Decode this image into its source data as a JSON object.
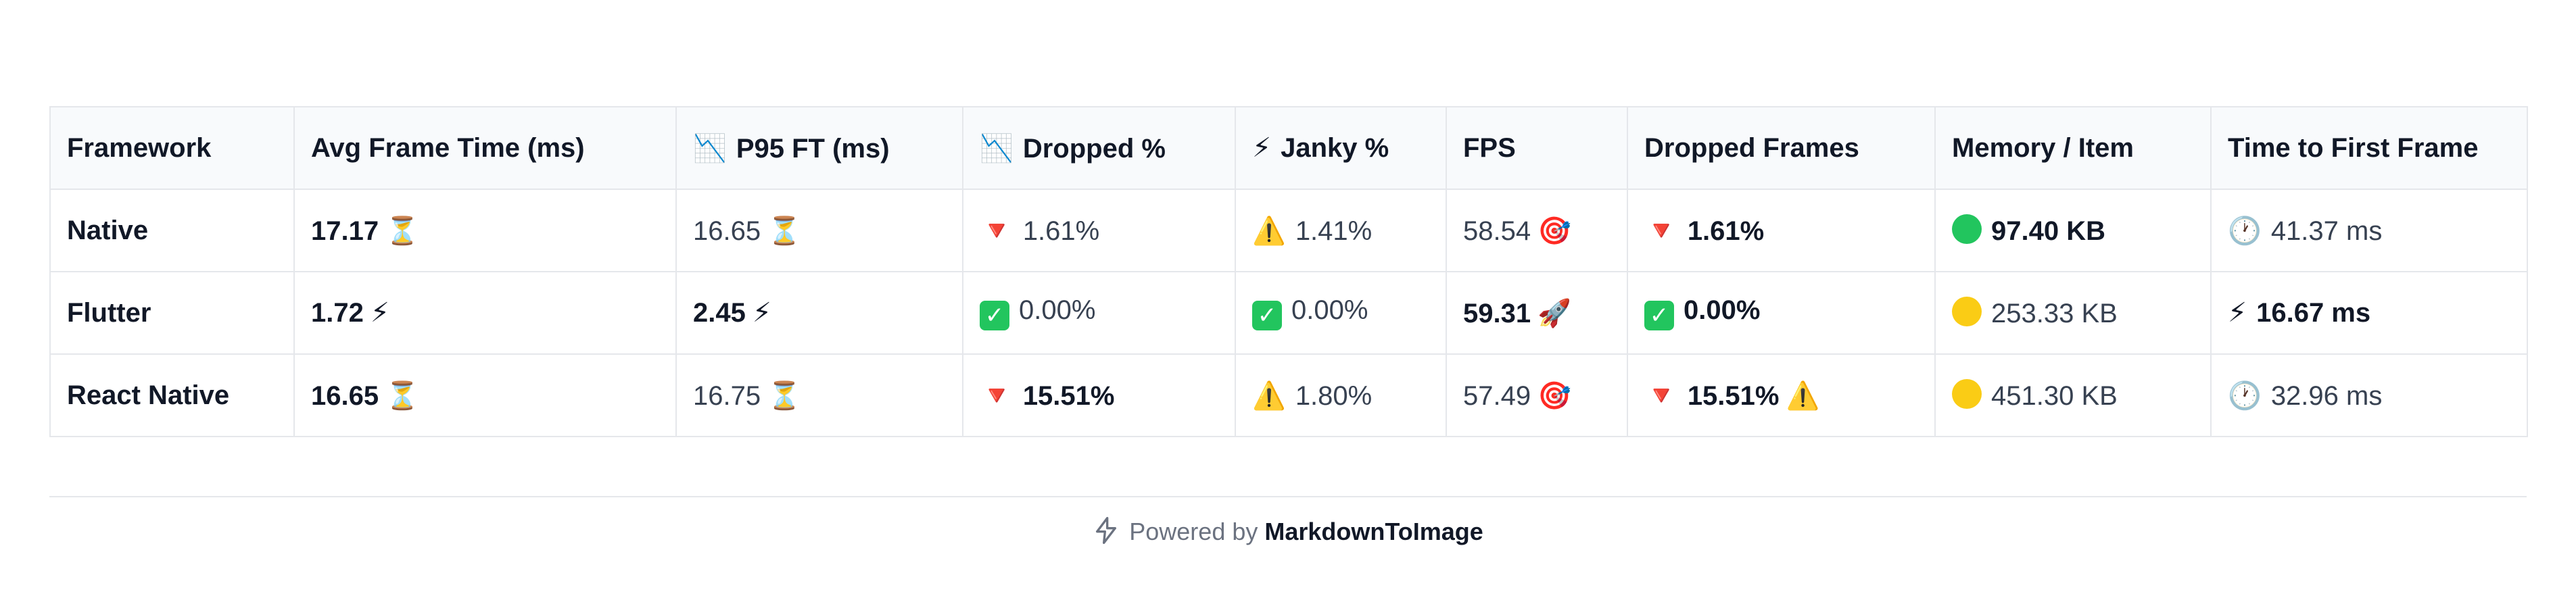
{
  "table": {
    "headers": [
      {
        "pre": "",
        "label": "Framework"
      },
      {
        "pre": "",
        "label": "Avg Frame Time (ms)"
      },
      {
        "pre": "📉",
        "label": "P95 FT (ms)"
      },
      {
        "pre": "📉",
        "label": "Dropped %"
      },
      {
        "pre": "⚡",
        "label": "Janky %"
      },
      {
        "pre": "",
        "label": "FPS"
      },
      {
        "pre": "",
        "label": "Dropped Frames"
      },
      {
        "pre": "",
        "label": "Memory / Item"
      },
      {
        "pre": "",
        "label": "Time to First Frame"
      }
    ],
    "rows": [
      {
        "framework": "Native",
        "avg_frame_time": "17.17",
        "avg_icon": "⏳",
        "p95": "16.65",
        "p95_icon": "⏳",
        "dropped_pct_icon": "🔻",
        "dropped_pct": "1.61%",
        "janky_icon": "⚠️",
        "janky": "1.41%",
        "fps": "58.54",
        "fps_icon": "🎯",
        "dropped_frames_icon": "🔻",
        "dropped_frames": "1.61%",
        "dropped_frames_suffix": "",
        "memory_icon": "🟢",
        "memory": "97.40 KB",
        "ttff_icon": "🕐",
        "ttff": "41.37 ms"
      },
      {
        "framework": "Flutter",
        "avg_frame_time": "1.72",
        "avg_icon": "⚡",
        "p95": "2.45",
        "p95_icon": "⚡",
        "dropped_pct_icon": "✅",
        "dropped_pct": "0.00%",
        "janky_icon": "✅",
        "janky": "0.00%",
        "fps": "59.31",
        "fps_icon": "🚀",
        "dropped_frames_icon": "✅",
        "dropped_frames": "0.00%",
        "dropped_frames_suffix": "",
        "memory_icon": "🟡",
        "memory": "253.33 KB",
        "ttff_icon": "⚡",
        "ttff": "16.67 ms"
      },
      {
        "framework": "React Native",
        "avg_frame_time": "16.65",
        "avg_icon": "⏳",
        "p95": "16.75",
        "p95_icon": "⏳",
        "dropped_pct_icon": "🔻",
        "dropped_pct": "15.51%",
        "janky_icon": "⚠️",
        "janky": "1.80%",
        "fps": "57.49",
        "fps_icon": "🎯",
        "dropped_frames_icon": "🔻",
        "dropped_frames": "15.51%",
        "dropped_frames_suffix": "⚠️",
        "memory_icon": "🟡",
        "memory": "451.30 KB",
        "ttff_icon": "🕐",
        "ttff": "32.96 ms"
      }
    ]
  },
  "colors": {
    "green_dot": "#22c55e",
    "yellow_dot": "#facc15",
    "red": "#e11d48",
    "warn": "#f59e0b"
  },
  "footer": {
    "prefix": "Powered by",
    "brand": "MarkdownToImage"
  }
}
